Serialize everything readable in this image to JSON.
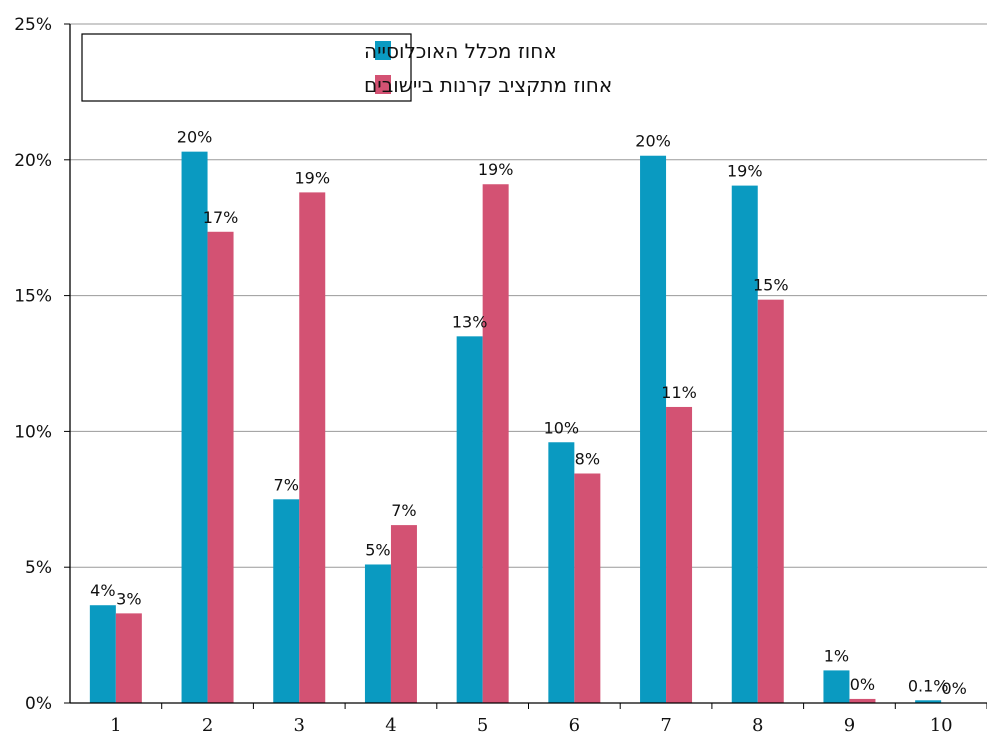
{
  "chart_data": {
    "type": "bar",
    "categories": [
      "1",
      "2",
      "3",
      "4",
      "5",
      "6",
      "7",
      "8",
      "9",
      "10"
    ],
    "series": [
      {
        "name": "אחוז מכלל האוכלוסייה",
        "color": "#0A9AC1",
        "values": [
          3.6,
          20.3,
          7.5,
          5.1,
          13.5,
          9.6,
          20.15,
          19.05,
          1.2,
          0.1
        ],
        "labels": [
          "4%",
          "20%",
          "7%",
          "5%",
          "13%",
          "10%",
          "20%",
          "19%",
          "1%",
          "0.1%"
        ]
      },
      {
        "name": "אחוז מתקציב קרנות ביישובים",
        "color": "#D35273",
        "values": [
          3.3,
          17.35,
          18.8,
          6.55,
          19.1,
          8.45,
          10.9,
          14.85,
          0.15,
          0.0
        ],
        "labels": [
          "3%",
          "17%",
          "19%",
          "7%",
          "19%",
          "8%",
          "11%",
          "15%",
          "0%",
          "0%"
        ]
      }
    ],
    "ylim": [
      0,
      25
    ],
    "yticks": [
      "0%",
      "5%",
      "10%",
      "15%",
      "20%",
      "25%"
    ],
    "grid": true,
    "legend_position": "top-left"
  }
}
